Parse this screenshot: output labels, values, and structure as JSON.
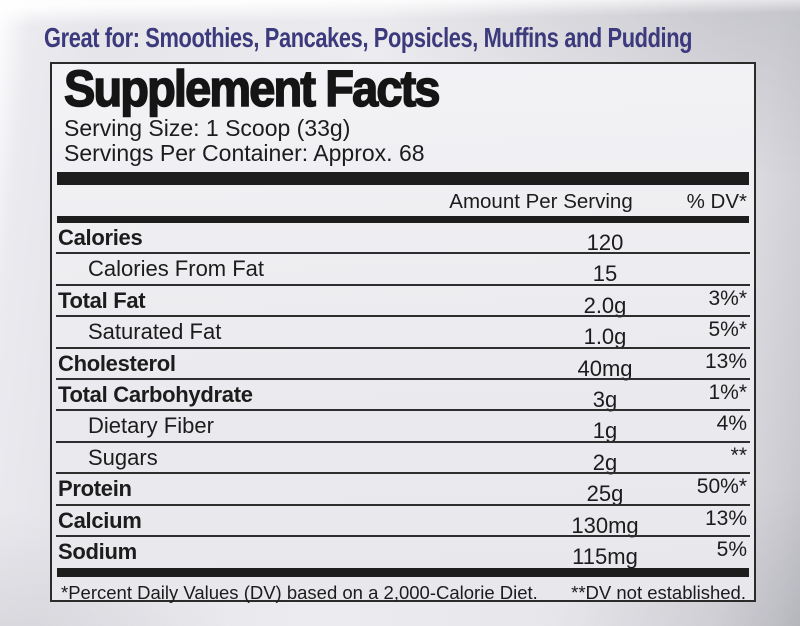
{
  "tagline": "Great for: Smoothies, Pancakes, Popsicles, Muffins and Pudding",
  "panel": {
    "title": "Supplement Facts",
    "serving_size": "Serving Size: 1 Scoop (33g)",
    "servings_per_container": "Servings Per Container: Approx. 68",
    "columns": {
      "amount": "Amount Per Serving",
      "dv": "% DV*"
    },
    "rows": [
      {
        "label": "Calories",
        "amount": "120",
        "dv": ""
      },
      {
        "label": "Calories From Fat",
        "amount": "15",
        "dv": ""
      },
      {
        "label": "Total Fat",
        "amount": "2.0g",
        "dv": "3%*"
      },
      {
        "label": "Saturated Fat",
        "amount": "1.0g",
        "dv": "5%*"
      },
      {
        "label": "Cholesterol",
        "amount": "40mg",
        "dv": "13%"
      },
      {
        "label": "Total Carbohydrate",
        "amount": "3g",
        "dv": "1%*"
      },
      {
        "label": "Dietary Fiber",
        "amount": "1g",
        "dv": "4%"
      },
      {
        "label": "Sugars",
        "amount": "2g",
        "dv": "**"
      },
      {
        "label": "Protein",
        "amount": "25g",
        "dv": "50%*"
      },
      {
        "label": "Calcium",
        "amount": "130mg",
        "dv": "13%"
      },
      {
        "label": "Sodium",
        "amount": "115mg",
        "dv": "5%"
      }
    ],
    "footnotes": {
      "left": "*Percent Daily Values (DV) based on a 2,000-Calorie Diet.",
      "right": "**DV not established."
    }
  },
  "colors": {
    "tagline_purple": "#3c3a7c",
    "ink_black": "#1c1c1c",
    "label_background": "#ebebef",
    "bottle_background": "#e5e5ea"
  }
}
